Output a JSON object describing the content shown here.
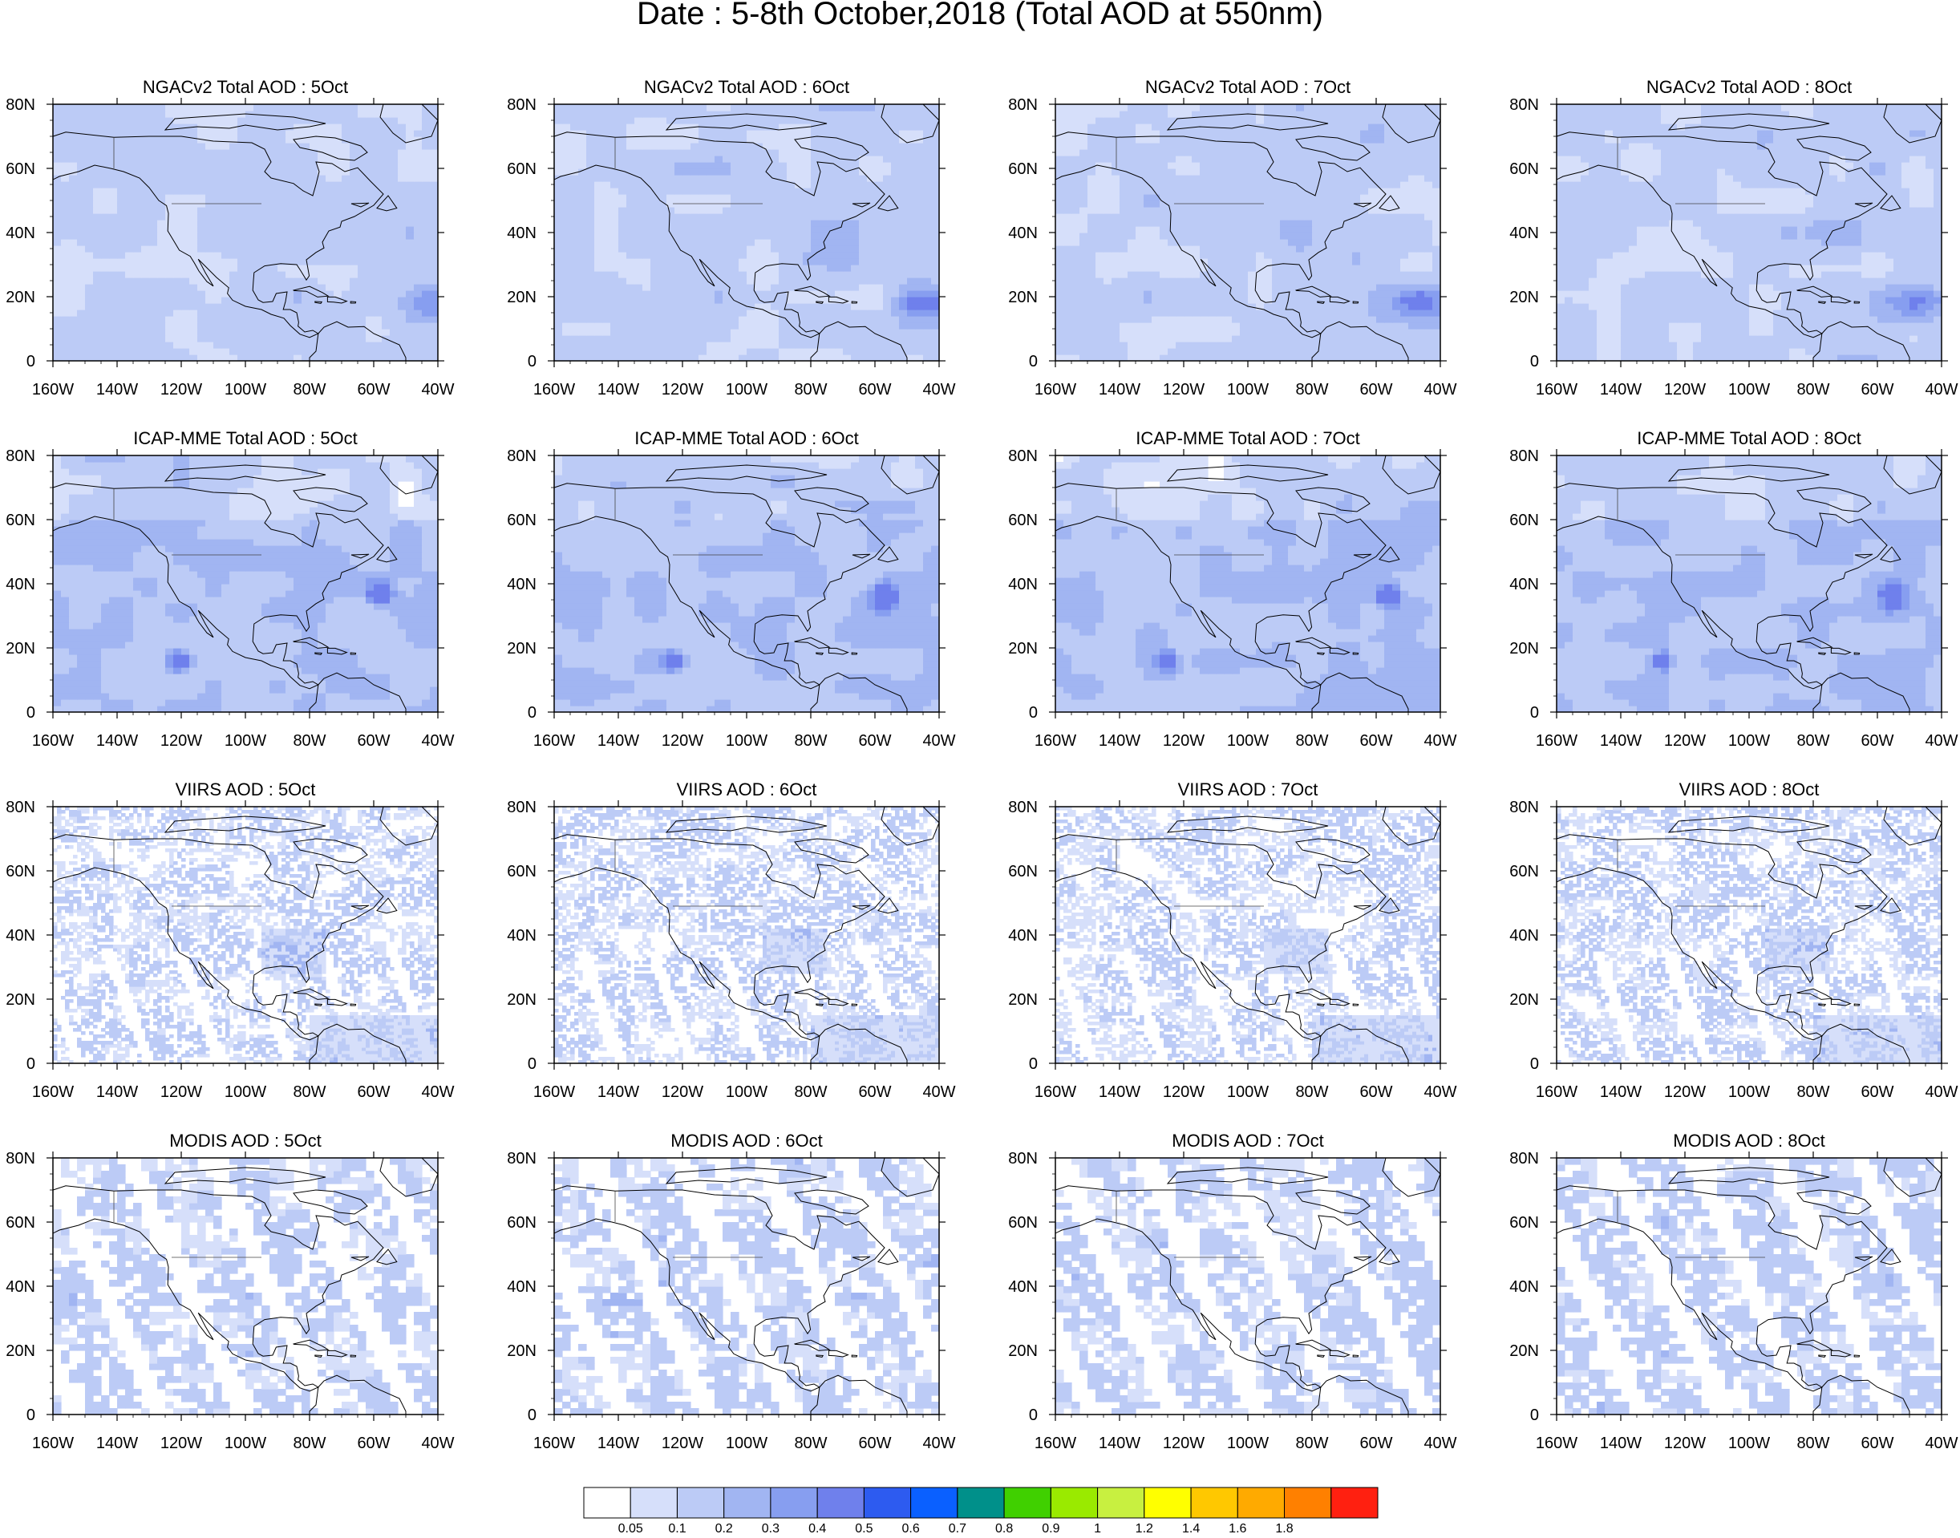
{
  "figure": {
    "title": "Date : 5-8th October,2018 (Total AOD at 550nm)"
  },
  "axes": {
    "lat_labels": [
      "80N",
      "60N",
      "40N",
      "20N",
      "0"
    ],
    "lon_labels": [
      "160W",
      "140W",
      "120W",
      "100W",
      "80W",
      "60W",
      "40W"
    ]
  },
  "rows": [
    {
      "product": "NGACv2",
      "titles": [
        "NGACv2 Total AOD : 5Oct",
        "NGACv2 Total AOD : 6Oct",
        "NGACv2 Total AOD : 7Oct",
        "NGACv2 Total AOD : 8Oct"
      ],
      "style": "model-smooth"
    },
    {
      "product": "ICAP-MME",
      "titles": [
        "ICAP-MME Total AOD : 5Oct",
        "ICAP-MME Total AOD : 6Oct",
        "ICAP-MME Total AOD : 7Oct",
        "ICAP-MME Total AOD : 8Oct"
      ],
      "style": "model-filled"
    },
    {
      "product": "VIIRS",
      "titles": [
        "VIIRS AOD : 5Oct",
        "VIIRS AOD : 6Oct",
        "VIIRS AOD : 7Oct",
        "VIIRS AOD : 8Oct"
      ],
      "style": "satellite-fine"
    },
    {
      "product": "MODIS",
      "titles": [
        "MODIS AOD : 5Oct",
        "MODIS AOD : 6Oct",
        "MODIS AOD : 7Oct",
        "MODIS AOD : 8Oct"
      ],
      "style": "satellite-coarse"
    }
  ],
  "colorbar": {
    "labels": [
      "0.05",
      "0.1",
      "0.2",
      "0.3",
      "0.4",
      "0.5",
      "0.6",
      "0.7",
      "0.8",
      "0.9",
      "1",
      "1.2",
      "1.4",
      "1.6",
      "1.8"
    ],
    "colors": [
      "#ffffff",
      "#d6dffa",
      "#bccbf6",
      "#a1b5f2",
      "#879ef0",
      "#6f80ec",
      "#2d5bf0",
      "#0a60ff",
      "#00908a",
      "#40d000",
      "#9aea00",
      "#c8f040",
      "#ffff00",
      "#ffc800",
      "#ffaa00",
      "#ff8000",
      "#ff2010"
    ]
  }
}
